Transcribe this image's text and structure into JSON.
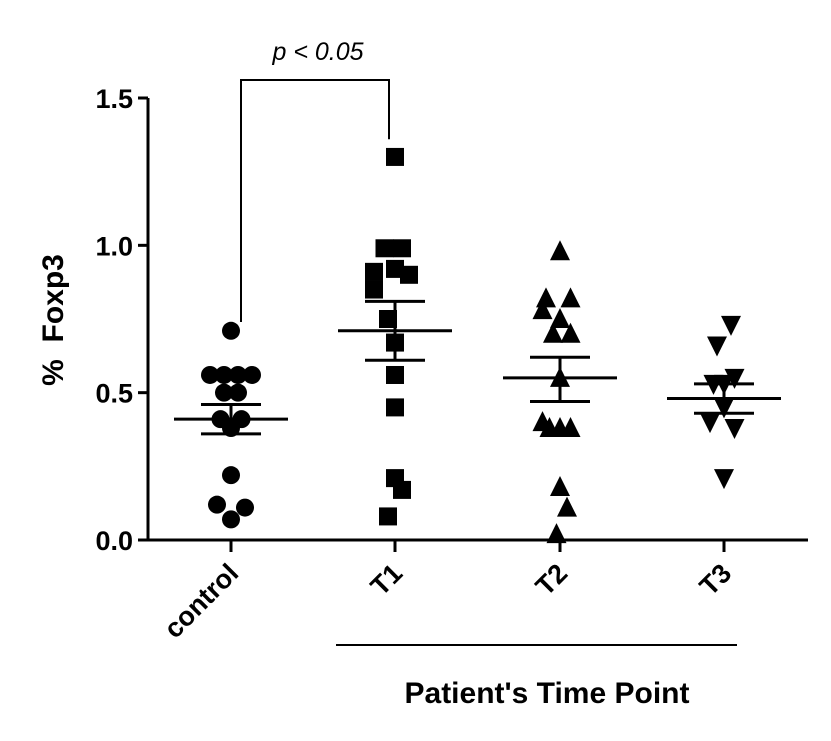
{
  "chart_data": {
    "type": "scatter",
    "ylabel": "%  Foxp3",
    "xlabel": "",
    "group_label": "Patient's Time Point",
    "ylim": [
      0,
      1.5
    ],
    "yticks": [
      "0.0",
      "0.5",
      "1.0",
      "1.5"
    ],
    "ytick_values": [
      0,
      0.5,
      1.0,
      1.5
    ],
    "categories": [
      "control",
      "T1",
      "T2",
      "T3"
    ],
    "series": [
      {
        "name": "control",
        "marker": "circle",
        "points": [
          {
            "dx": 0.0,
            "y": 0.71
          },
          {
            "dx": -0.3,
            "y": 0.56
          },
          {
            "dx": -0.1,
            "y": 0.56
          },
          {
            "dx": 0.1,
            "y": 0.56
          },
          {
            "dx": 0.3,
            "y": 0.56
          },
          {
            "dx": -0.1,
            "y": 0.5
          },
          {
            "dx": 0.1,
            "y": 0.5
          },
          {
            "dx": -0.15,
            "y": 0.41
          },
          {
            "dx": 0.15,
            "y": 0.41
          },
          {
            "dx": 0.0,
            "y": 0.38
          },
          {
            "dx": 0.0,
            "y": 0.22
          },
          {
            "dx": -0.2,
            "y": 0.12
          },
          {
            "dx": 0.2,
            "y": 0.11
          },
          {
            "dx": 0.0,
            "y": 0.07
          }
        ],
        "mean": 0.41,
        "sem": [
          0.36,
          0.46
        ]
      },
      {
        "name": "T1",
        "marker": "square",
        "points": [
          {
            "dx": 0.0,
            "y": 1.3
          },
          {
            "dx": -0.15,
            "y": 0.99
          },
          {
            "dx": 0.1,
            "y": 0.99
          },
          {
            "dx": -0.3,
            "y": 0.91
          },
          {
            "dx": 0.0,
            "y": 0.92
          },
          {
            "dx": 0.2,
            "y": 0.9
          },
          {
            "dx": -0.3,
            "y": 0.85
          },
          {
            "dx": -0.1,
            "y": 0.75
          },
          {
            "dx": 0.0,
            "y": 0.67
          },
          {
            "dx": 0.0,
            "y": 0.56
          },
          {
            "dx": 0.0,
            "y": 0.45
          },
          {
            "dx": 0.0,
            "y": 0.21
          },
          {
            "dx": 0.1,
            "y": 0.17
          },
          {
            "dx": -0.1,
            "y": 0.08
          }
        ],
        "mean": 0.71,
        "sem": [
          0.61,
          0.81
        ]
      },
      {
        "name": "T2",
        "marker": "triangle-up",
        "points": [
          {
            "dx": 0.0,
            "y": 0.98
          },
          {
            "dx": -0.2,
            "y": 0.82
          },
          {
            "dx": 0.15,
            "y": 0.82
          },
          {
            "dx": -0.25,
            "y": 0.78
          },
          {
            "dx": 0.0,
            "y": 0.75
          },
          {
            "dx": -0.1,
            "y": 0.7
          },
          {
            "dx": 0.15,
            "y": 0.7
          },
          {
            "dx": 0.0,
            "y": 0.55
          },
          {
            "dx": -0.25,
            "y": 0.4
          },
          {
            "dx": 0.0,
            "y": 0.38
          },
          {
            "dx": 0.15,
            "y": 0.38
          },
          {
            "dx": -0.15,
            "y": 0.38
          },
          {
            "dx": 0.0,
            "y": 0.18
          },
          {
            "dx": 0.1,
            "y": 0.11
          },
          {
            "dx": -0.05,
            "y": 0.02
          }
        ],
        "mean": 0.55,
        "sem": [
          0.47,
          0.62
        ]
      },
      {
        "name": "T3",
        "marker": "triangle-down",
        "points": [
          {
            "dx": 0.1,
            "y": 0.73
          },
          {
            "dx": -0.1,
            "y": 0.66
          },
          {
            "dx": 0.15,
            "y": 0.55
          },
          {
            "dx": -0.15,
            "y": 0.53
          },
          {
            "dx": 0.0,
            "y": 0.53
          },
          {
            "dx": 0.0,
            "y": 0.45
          },
          {
            "dx": -0.2,
            "y": 0.4
          },
          {
            "dx": 0.15,
            "y": 0.38
          },
          {
            "dx": 0.0,
            "y": 0.21
          }
        ],
        "mean": 0.48,
        "sem": [
          0.43,
          0.53
        ]
      }
    ],
    "annotations": [
      {
        "text": "p < 0.05",
        "between": [
          "control",
          "T1"
        ]
      }
    ]
  }
}
